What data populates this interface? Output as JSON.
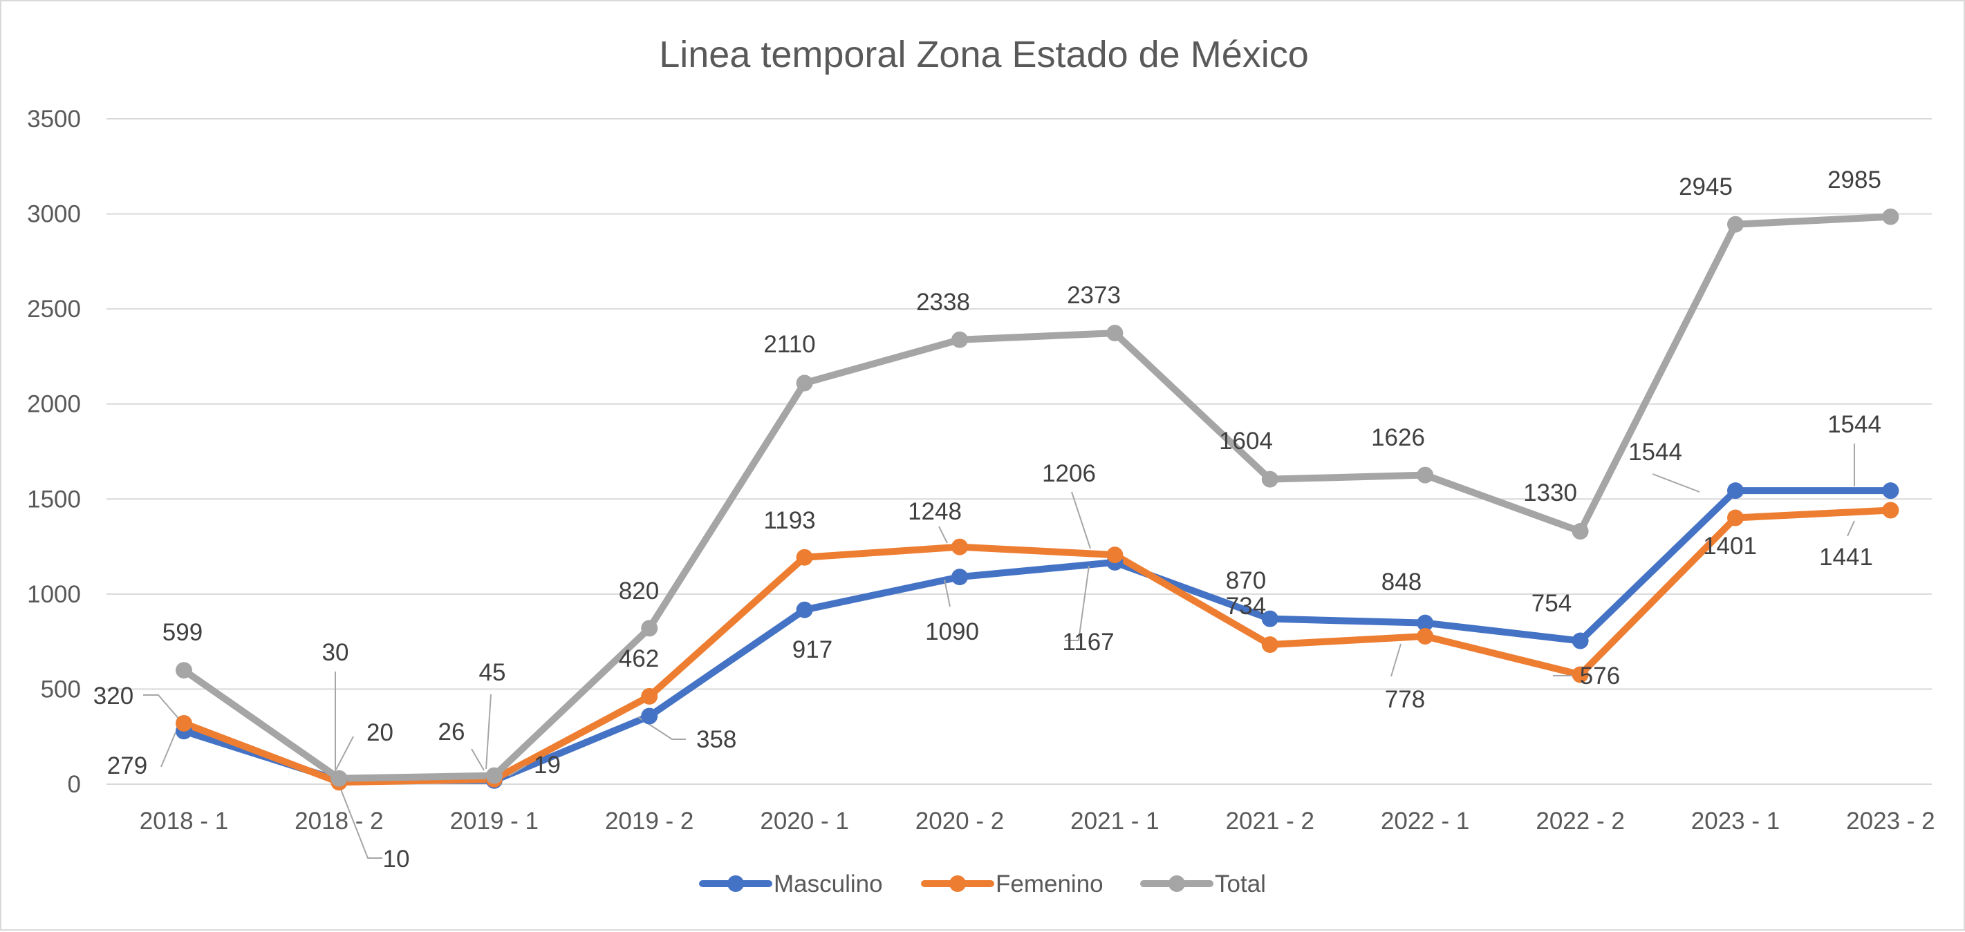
{
  "chart_data": {
    "type": "line",
    "title": "Linea temporal Zona Estado de México",
    "xlabel": "",
    "ylabel": "",
    "categories": [
      "2018 - 1",
      "2018 - 2",
      "2019 - 1",
      "2019 - 2",
      "2020 - 1",
      "2020 - 2",
      "2021 - 1",
      "2021 - 2",
      "2022 - 1",
      "2022 - 2",
      "2023 - 1",
      "2023 - 2"
    ],
    "ylim": [
      0,
      3500
    ],
    "yticks": [
      0,
      500,
      1000,
      1500,
      2000,
      2500,
      3000,
      3500
    ],
    "grid": true,
    "legend_position": "bottom",
    "series": [
      {
        "name": "Masculino",
        "color": "#4472c4",
        "values": [
          279,
          20,
          19,
          358,
          917,
          1090,
          1167,
          870,
          848,
          754,
          1544,
          1544
        ]
      },
      {
        "name": "Femenino",
        "color": "#ed7d31",
        "values": [
          320,
          10,
          26,
          462,
          1193,
          1248,
          1206,
          734,
          778,
          576,
          1401,
          1441
        ]
      },
      {
        "name": "Total",
        "color": "#a5a5a5",
        "values": [
          599,
          30,
          45,
          820,
          2110,
          2338,
          2373,
          1604,
          1626,
          1330,
          2945,
          2985
        ]
      }
    ]
  }
}
